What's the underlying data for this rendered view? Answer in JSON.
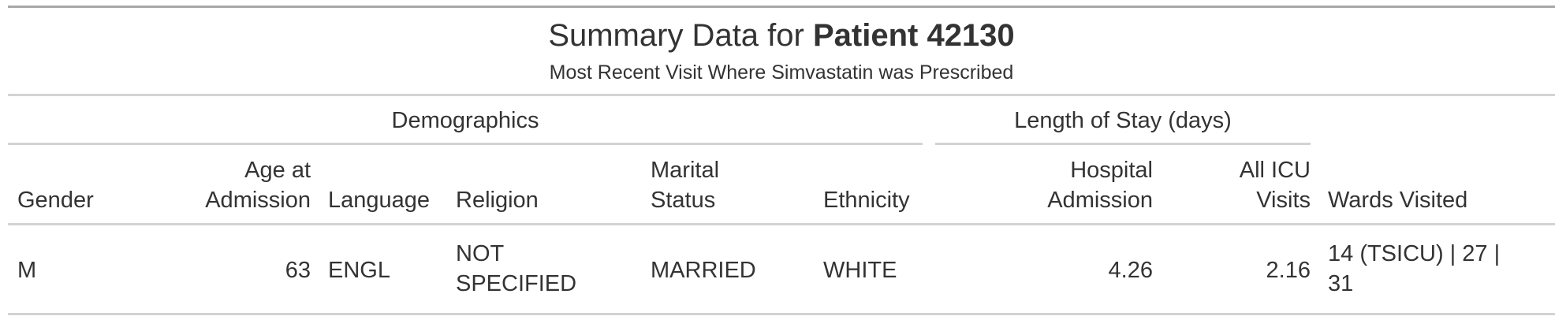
{
  "table": {
    "title_prefix": "Summary Data for ",
    "title_bold": "Patient 42130",
    "subtitle": "Most Recent Visit Where Simvastatin was Prescribed",
    "spanners": {
      "demographics": "Demographics",
      "length_of_stay": "Length of Stay (days)"
    },
    "columns": {
      "gender": "Gender",
      "age_line1": "Age at",
      "age_line2": "Admission",
      "language": "Language",
      "religion": "Religion",
      "marital_line1": "Marital",
      "marital_line2": "Status",
      "ethnicity": "Ethnicity",
      "hospital_line1": "Hospital",
      "hospital_line2": "Admission",
      "icu_line1": "All ICU",
      "icu_line2": "Visits",
      "wards": "Wards Visited"
    },
    "row": {
      "gender": "M",
      "age": "63",
      "language": "ENGL",
      "religion_line1": "NOT",
      "religion_line2": "SPECIFIED",
      "marital": "MARRIED",
      "ethnicity": "WHITE",
      "hospital": "4.26",
      "icu": "2.16",
      "wards_line1": "14 (TSICU) | 27 |",
      "wards_line2": "31"
    }
  }
}
